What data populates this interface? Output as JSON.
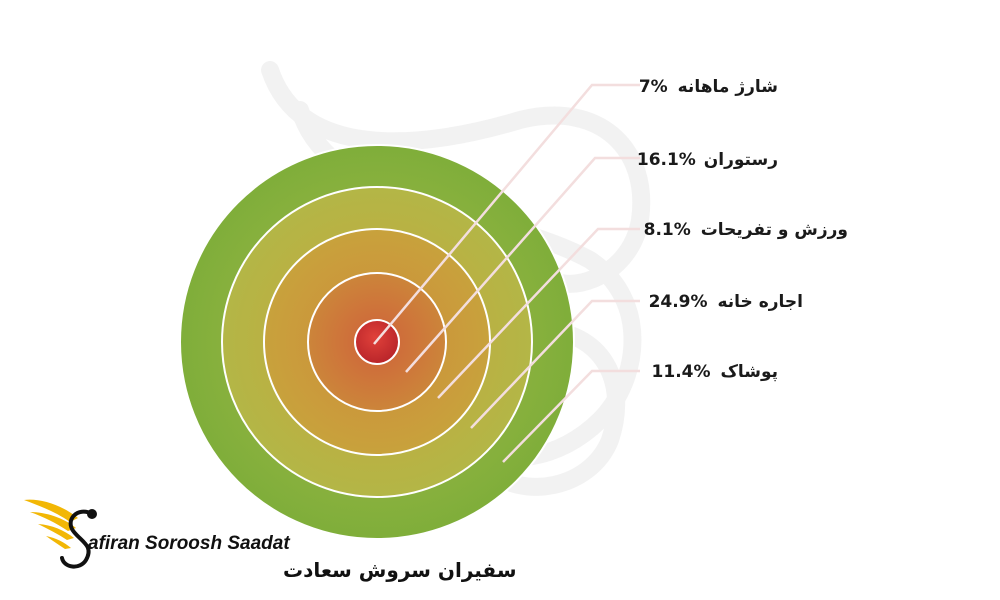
{
  "chart_data": {
    "type": "pie",
    "style": "concentric-rings",
    "slices": [
      {
        "label": "شارژ ماهانه",
        "value": 7,
        "value_text": "7%"
      },
      {
        "label": "رستوران",
        "value": 16.1,
        "value_text": "16.1%"
      },
      {
        "label": "ورزش و تفریحات",
        "value": 8.1,
        "value_text": "8.1%"
      },
      {
        "label": "اجاره خانه",
        "value": 24.9,
        "value_text": "24.9%"
      },
      {
        "label": "پوشاک",
        "value": 11.4,
        "value_text": "11.4%"
      }
    ],
    "colors": [
      "#c42a2c",
      "#cc6a3a",
      "#c99a3c",
      "#b6b545",
      "#7ea83a"
    ]
  },
  "logo": {
    "name_en": "afiran Soroosh Saadat",
    "name_fa": "سفیران سروش سعادت",
    "accent_color": "#f2b705"
  }
}
